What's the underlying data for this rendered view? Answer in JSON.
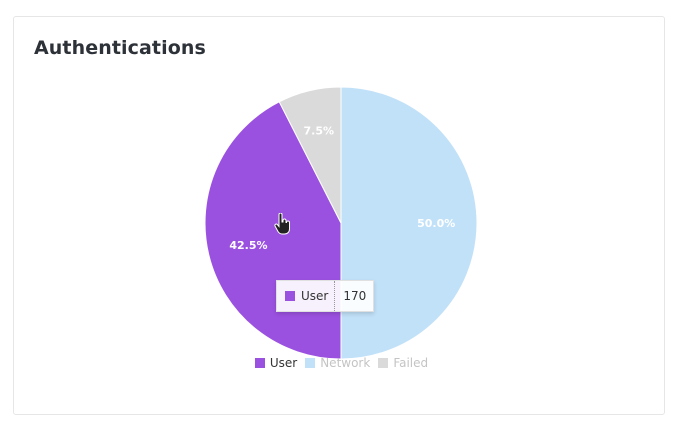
{
  "card": {
    "title": "Authentications"
  },
  "chart_data": {
    "type": "pie",
    "title": "Authentications",
    "categories": [
      "User",
      "Network",
      "Failed"
    ],
    "values": [
      170,
      200,
      30
    ],
    "percent_labels": [
      "42.5%",
      "50.0%",
      "7.5%"
    ],
    "colors": [
      "#9b51e0",
      "#c1e1f9",
      "#dadada"
    ],
    "legend_position": "bottom",
    "legend": [
      {
        "label": "User",
        "color": "#9b51e0",
        "active": true
      },
      {
        "label": "Network",
        "color": "#c1e1f9",
        "active": false
      },
      {
        "label": "Failed",
        "color": "#dadada",
        "active": false
      }
    ],
    "tooltip": {
      "label": "User",
      "value": "170",
      "color": "#9b51e0"
    }
  }
}
